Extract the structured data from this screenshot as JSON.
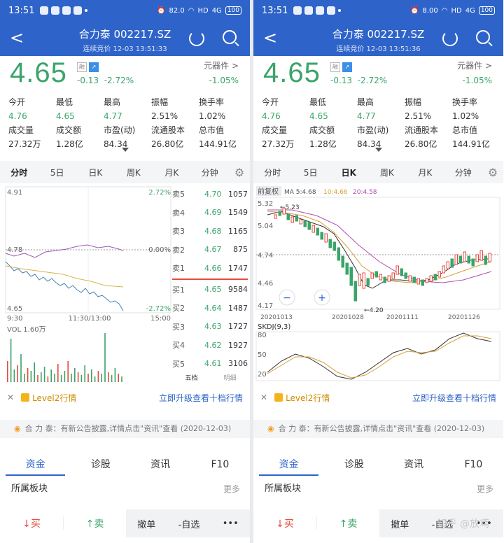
{
  "screens": [
    {
      "status": {
        "time": "13:51",
        "net_speed": "82.0",
        "net_unit": "KB/S",
        "hd": "HD",
        "signal": "4G",
        "battery": "100"
      },
      "header": {
        "title": "合力泰 002217.SZ",
        "subtitle": "连续竞价 12-03 13:51:33"
      },
      "quote": {
        "price": "4.65",
        "badge_margin": "融",
        "change": "-0.13",
        "change_pct": "-2.72%",
        "sector": "元器件 >",
        "sector_change": "-1.05%"
      },
      "stats": [
        [
          {
            "l": "今开",
            "v": "4.76",
            "c": "g"
          },
          {
            "l": "最低",
            "v": "4.65",
            "c": "g"
          },
          {
            "l": "最高",
            "v": "4.77",
            "c": "g"
          },
          {
            "l": "振幅",
            "v": "2.51%",
            "c": "v"
          },
          {
            "l": "换手率",
            "v": "1.02%",
            "c": "v"
          }
        ],
        [
          {
            "l": "成交量",
            "v": "27.32万",
            "c": "v"
          },
          {
            "l": "成交额",
            "v": "1.28亿",
            "c": "v"
          },
          {
            "l": "市盈(动)",
            "v": "84.34",
            "c": "v"
          },
          {
            "l": "流通股本",
            "v": "26.80亿",
            "c": "v"
          },
          {
            "l": "总市值",
            "v": "144.91亿",
            "c": "v"
          }
        ]
      ],
      "tabs": [
        "分时",
        "5日",
        "日K",
        "周K",
        "月K",
        "分钟"
      ],
      "active_tab": 0,
      "intraday": {
        "y_top": "4.91",
        "y_mid": "4.78",
        "y_bot": "4.65",
        "pct_top": "2.72%",
        "pct_mid": "0.00%",
        "pct_bot": "-2.72%",
        "x_left": "9:30",
        "x_mid": "11:30/13:00",
        "x_right": "15:00",
        "vol_label": "VOL 1.60万"
      },
      "order_book": {
        "asks": [
          {
            "l": "卖5",
            "p": "4.70",
            "q": "1057"
          },
          {
            "l": "卖4",
            "p": "4.69",
            "q": "1549"
          },
          {
            "l": "卖3",
            "p": "4.68",
            "q": "1165"
          },
          {
            "l": "卖2",
            "p": "4.67",
            "q": "875"
          },
          {
            "l": "卖1",
            "p": "4.66",
            "q": "1747"
          }
        ],
        "bids": [
          {
            "l": "买1",
            "p": "4.65",
            "q": "9584"
          },
          {
            "l": "买2",
            "p": "4.64",
            "q": "1487"
          },
          {
            "l": "买3",
            "p": "4.63",
            "q": "1727"
          },
          {
            "l": "买4",
            "p": "4.62",
            "q": "1927"
          },
          {
            "l": "买5",
            "p": "4.61",
            "q": "3106"
          }
        ],
        "tabs": [
          "五档",
          "明细"
        ]
      },
      "level2": {
        "label": "Level2行情",
        "upgrade": "立即升级查看十档行情"
      },
      "notice": "合 力 泰：有新公告披露,详情点击\"资讯\"查看 (2020-12-03)",
      "bottom_tabs": [
        "资金",
        "诊股",
        "资讯",
        "F10"
      ],
      "plate": {
        "title": "所属板块",
        "more": "更多"
      },
      "actions": {
        "buy": "买",
        "sell": "卖",
        "cancel": "撤单",
        "watch": "-自选",
        "more": "•••"
      }
    },
    {
      "status": {
        "time": "13:51",
        "net_speed": "8.00",
        "net_unit": "KB/S",
        "hd": "HD",
        "signal": "4G",
        "battery": "100"
      },
      "header": {
        "title": "合力泰 002217.SZ",
        "subtitle": "连续竞价 12-03 13:51:36"
      },
      "quote": {
        "price": "4.65",
        "badge_margin": "融",
        "change": "-0.13",
        "change_pct": "-2.72%",
        "sector": "元器件 >",
        "sector_change": "-1.05%"
      },
      "stats": [
        [
          {
            "l": "今开",
            "v": "4.76",
            "c": "g"
          },
          {
            "l": "最低",
            "v": "4.65",
            "c": "g"
          },
          {
            "l": "最高",
            "v": "4.77",
            "c": "g"
          },
          {
            "l": "振幅",
            "v": "2.51%",
            "c": "v"
          },
          {
            "l": "换手率",
            "v": "1.02%",
            "c": "v"
          }
        ],
        [
          {
            "l": "成交量",
            "v": "27.32万",
            "c": "v"
          },
          {
            "l": "成交额",
            "v": "1.28亿",
            "c": "v"
          },
          {
            "l": "市盈(动)",
            "v": "84.34",
            "c": "v"
          },
          {
            "l": "流通股本",
            "v": "26.80亿",
            "c": "v"
          },
          {
            "l": "总市值",
            "v": "144.91亿",
            "c": "v"
          }
        ]
      ],
      "tabs": [
        "分时",
        "5日",
        "日K",
        "周K",
        "月K",
        "分钟"
      ],
      "active_tab": 2,
      "kline": {
        "adjust": "前复权",
        "ma5": "MA 5:4.68",
        "ma10": "10:4.66",
        "ma20": "20:4.58",
        "y_top": "5.32",
        "y_2": "5.04",
        "y_3": "4.74",
        "y_4": "4.46",
        "y_5": "4.17",
        "high_mark": "5.23",
        "low_mark": "4.20",
        "dates": [
          "20201013",
          "20201028",
          "20201111",
          "20201126"
        ],
        "kdj_label": "SKDJ(9,3)",
        "kdj_80": "80",
        "kdj_50": "50",
        "kdj_20": "20",
        "zoom_minus": "−",
        "zoom_plus": "+"
      },
      "level2": {
        "label": "Level2行情",
        "upgrade": "立即升级查看十档行情"
      },
      "notice": "合 力 泰：有新公告披露,详情点击\"资讯\"查看 (2020-12-03)",
      "bottom_tabs": [
        "资金",
        "诊股",
        "资讯",
        "F10"
      ],
      "plate": {
        "title": "所属板块",
        "more": "更多"
      },
      "actions": {
        "buy": "买",
        "sell": "卖",
        "cancel": "撤单",
        "watch": "-自选",
        "more": "•••"
      }
    }
  ],
  "watermark": "知乎 @放鸢",
  "colors": {
    "header": "#2e63c9",
    "up": "#e64b3c",
    "down": "#3aa46a",
    "link": "#2e63c9"
  }
}
